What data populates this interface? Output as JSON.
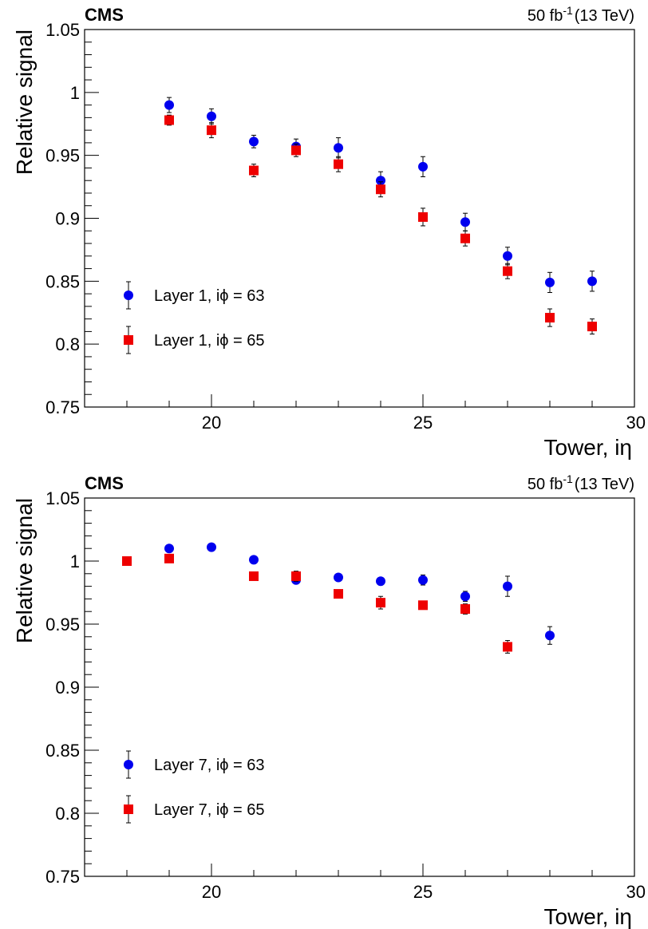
{
  "chart_data": [
    {
      "type": "scatter",
      "experiment": "CMS",
      "lumi": {
        "value": "50 fb",
        "exp": "-1",
        "energy": "(13 TeV)"
      },
      "xlabel": "Tower, iη",
      "ylabel": "Relative signal",
      "xlim": [
        17.0,
        30.0
      ],
      "ylim": [
        0.75,
        1.05
      ],
      "xticks": [
        "20",
        "25",
        "30"
      ],
      "xtick_values": [
        20,
        25,
        30
      ],
      "yticks": [
        "0.75",
        "0.8",
        "0.85",
        "0.9",
        "0.95",
        "1",
        "1.05"
      ],
      "ytick_values": [
        0.75,
        0.8,
        0.85,
        0.9,
        0.95,
        1.0,
        1.05
      ],
      "legend_placement": "lower-left",
      "series": [
        {
          "name": "Layer 1, iϕ = 63",
          "marker": "circle",
          "color": "#0000ee",
          "x": [
            19,
            20,
            21,
            22,
            23,
            24,
            25,
            26,
            27,
            28,
            29
          ],
          "y": [
            0.99,
            0.981,
            0.961,
            0.957,
            0.956,
            0.93,
            0.941,
            0.897,
            0.87,
            0.849,
            0.85
          ],
          "err": [
            0.006,
            0.006,
            0.005,
            0.006,
            0.008,
            0.007,
            0.008,
            0.007,
            0.007,
            0.008,
            0.008
          ]
        },
        {
          "name": "Layer 1, iϕ = 65",
          "marker": "square",
          "color": "#ee0000",
          "x": [
            19,
            20,
            21,
            22,
            23,
            24,
            25,
            26,
            27,
            28,
            29
          ],
          "y": [
            0.978,
            0.97,
            0.938,
            0.954,
            0.943,
            0.923,
            0.901,
            0.884,
            0.858,
            0.821,
            0.814
          ],
          "err": [
            0.004,
            0.006,
            0.005,
            0.005,
            0.006,
            0.006,
            0.007,
            0.006,
            0.006,
            0.007,
            0.006
          ]
        }
      ]
    },
    {
      "type": "scatter",
      "experiment": "CMS",
      "lumi": {
        "value": "50 fb",
        "exp": "-1",
        "energy": "(13 TeV)"
      },
      "xlabel": "Tower, iη",
      "ylabel": "Relative signal",
      "xlim": [
        17.0,
        30.0
      ],
      "ylim": [
        0.75,
        1.05
      ],
      "xticks": [
        "20",
        "25",
        "30"
      ],
      "xtick_values": [
        20,
        25,
        30
      ],
      "yticks": [
        "0.75",
        "0.8",
        "0.85",
        "0.9",
        "0.95",
        "1",
        "1.05"
      ],
      "ytick_values": [
        0.75,
        0.8,
        0.85,
        0.9,
        0.95,
        1.0,
        1.05
      ],
      "legend_placement": "lower-left",
      "series": [
        {
          "name": "Layer 7, iϕ = 63",
          "marker": "circle",
          "color": "#0000ee",
          "x": [
            19,
            20,
            21,
            22,
            23,
            24,
            25,
            26,
            27,
            28
          ],
          "y": [
            1.01,
            1.011,
            1.001,
            0.985,
            0.987,
            0.984,
            0.985,
            0.972,
            0.98,
            0.941
          ],
          "err": [
            0.002,
            0.002,
            0.002,
            0.003,
            0.002,
            0.002,
            0.004,
            0.004,
            0.008,
            0.007
          ]
        },
        {
          "name": "Layer 7, iϕ = 65",
          "marker": "square",
          "color": "#ee0000",
          "x": [
            18,
            19,
            21,
            22,
            23,
            24,
            25,
            26,
            27
          ],
          "y": [
            1.0,
            1.002,
            0.988,
            0.988,
            0.974,
            0.967,
            0.965,
            0.962,
            0.932
          ],
          "err": [
            0.002,
            0.002,
            0.002,
            0.004,
            0.002,
            0.005,
            0.002,
            0.004,
            0.005
          ]
        }
      ]
    }
  ]
}
